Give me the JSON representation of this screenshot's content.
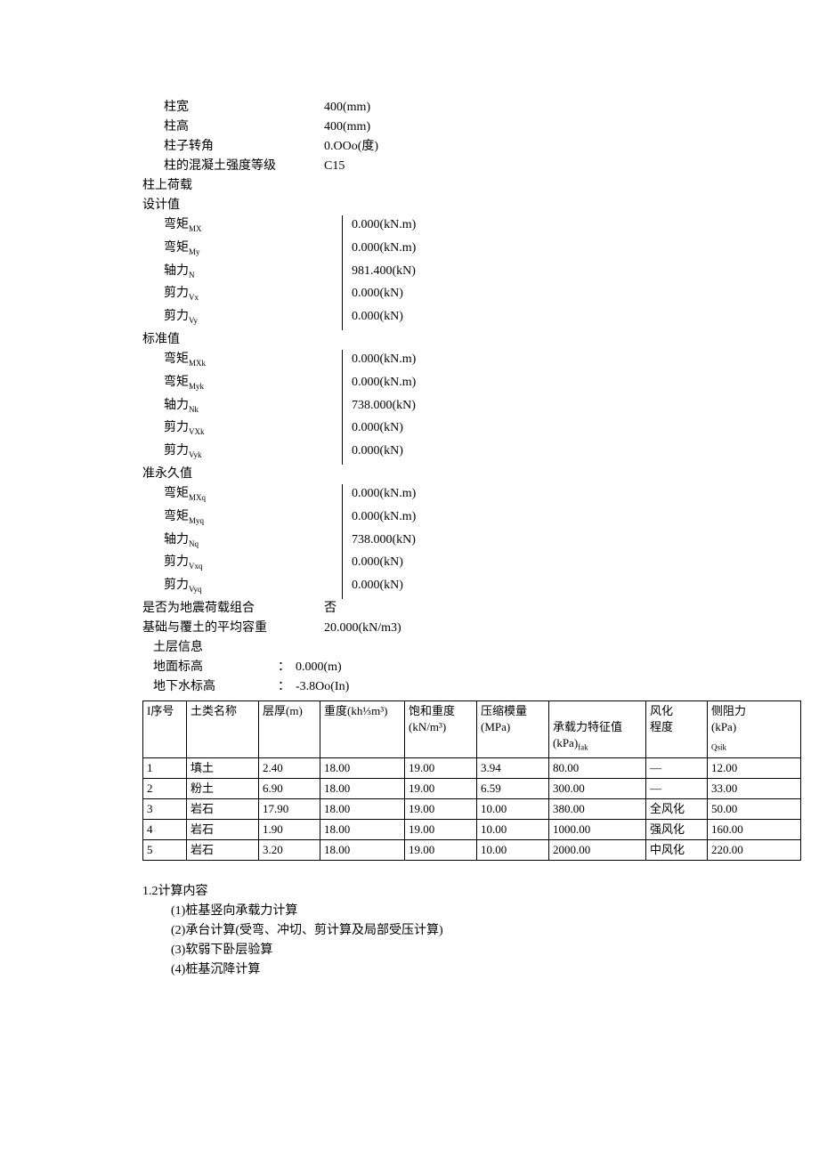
{
  "column_params": [
    {
      "label": "柱宽",
      "value": "400(mm)"
    },
    {
      "label": "柱高",
      "value": "400(mm)"
    },
    {
      "label": "柱子转角",
      "value": "0.OOo(度)"
    },
    {
      "label": "柱的混凝土强度等级",
      "value": "C15"
    }
  ],
  "load_section_title": "柱上荷载",
  "design_title": "设计值",
  "design_loads": [
    {
      "name": "弯矩",
      "sub": "MX",
      "value": "0.000(kN.m)"
    },
    {
      "name": "弯矩",
      "sub": "My",
      "value": "0.000(kN.m)"
    },
    {
      "name": "轴力",
      "sub": "N",
      "value": "981.400(kN)"
    },
    {
      "name": "剪力",
      "sub": "Vx",
      "value": "0.000(kN)"
    },
    {
      "name": "剪力",
      "sub": "Vy",
      "value": "0.000(kN)"
    }
  ],
  "standard_title": "标准值",
  "standard_loads": [
    {
      "name": "弯矩",
      "sub": "MXk",
      "value": "0.000(kN.m)"
    },
    {
      "name": "弯矩",
      "sub": "Myk",
      "value": "0.000(kN.m)"
    },
    {
      "name": "轴力",
      "sub": "Nk",
      "value": "738.000(kN)"
    },
    {
      "name": "剪力",
      "sub": "VXk",
      "value": "0.000(kN)"
    },
    {
      "name": "剪力",
      "sub": "Vyk",
      "value": "0.000(kN)"
    }
  ],
  "quasi_title": "准永久值",
  "quasi_loads": [
    {
      "name": "弯矩",
      "sub": "MXq",
      "value": "0.000(kN.m)"
    },
    {
      "name": "弯矩",
      "sub": "Myq",
      "value": "0.000(kN.m)"
    },
    {
      "name": "轴力",
      "sub": "Nq",
      "value": "738.000(kN)"
    },
    {
      "name": "剪力",
      "sub": "Vxq",
      "value": "0.000(kN)"
    },
    {
      "name": "剪力",
      "sub": "Vyq",
      "value": "0.000(kN)"
    }
  ],
  "seismic_row": {
    "label": "是否为地震荷载组合",
    "value": "否"
  },
  "avg_weight_row": {
    "label": "基础与覆土的平均容重",
    "value": "20.000(kN/m3)"
  },
  "soil_section_title": "土层信息",
  "ground_elev": {
    "label": "地面标高",
    "value": "0.000(m)"
  },
  "water_elev": {
    "label": "地下水标高",
    "value": "-3.8Oo(In)"
  },
  "soil_headers": {
    "seq": "I序号",
    "name": "土类名称",
    "thick": "层厚(m)",
    "weight": "重度(kh⅓m³)",
    "sat_weight_l1": "饱和重度",
    "sat_weight_l2": "(kN/m³)",
    "modulus_l1": "压缩模量",
    "modulus_l2": "(MPa)",
    "bearing_l1": "承载力特征值",
    "bearing_l2": "(kPa)",
    "bearing_sub": "fak",
    "weathering_l1": "风化",
    "weathering_l2": "程度",
    "side_l1": "侧阻力",
    "side_l2": "(kPa)",
    "side_sub": "Qsik"
  },
  "soil_rows": [
    {
      "seq": "1",
      "name": "填土",
      "thick": "2.40",
      "weight": "18.00",
      "sat": "19.00",
      "mod": "3.94",
      "bear": "80.00",
      "weath": "—",
      "side": "12.00"
    },
    {
      "seq": "2",
      "name": "粉土",
      "thick": "6.90",
      "weight": "18.00",
      "sat": "19.00",
      "mod": "6.59",
      "bear": "300.00",
      "weath": "—",
      "side": "33.00"
    },
    {
      "seq": "3",
      "name": "岩石",
      "thick": "17.90",
      "weight": "18.00",
      "sat": "19.00",
      "mod": "10.00",
      "bear": "380.00",
      "weath": "全风化",
      "side": "50.00"
    },
    {
      "seq": "4",
      "name": "岩石",
      "thick": "1.90",
      "weight": "18.00",
      "sat": "19.00",
      "mod": "10.00",
      "bear": "1000.00",
      "weath": "强风化",
      "side": "160.00"
    },
    {
      "seq": "5",
      "name": "岩石",
      "thick": "3.20",
      "weight": "18.00",
      "sat": "19.00",
      "mod": "10.00",
      "bear": "2000.00",
      "weath": "中风化",
      "side": "220.00"
    }
  ],
  "calc_title": "1.2计算内容",
  "calc_items": [
    "(1)桩基竖向承载力计算",
    "(2)承台计算(受弯、冲切、剪计算及局部受压计算)",
    "(3)软弱下卧层验算",
    "(4)桩基沉降计算"
  ]
}
